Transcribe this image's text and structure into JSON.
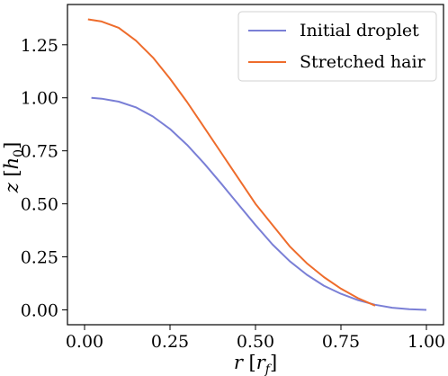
{
  "chart_data": {
    "type": "line",
    "xlim": [
      -0.05,
      1.05
    ],
    "ylim": [
      -0.07,
      1.44
    ],
    "x_ticks": [
      0.0,
      0.25,
      0.5,
      0.75,
      1.0
    ],
    "x_tick_labels": [
      "0.00",
      "0.25",
      "0.50",
      "0.75",
      "1.00"
    ],
    "y_ticks": [
      0.0,
      0.25,
      0.5,
      0.75,
      1.0,
      1.25
    ],
    "y_tick_labels": [
      "0.00",
      "0.25",
      "0.50",
      "0.75",
      "1.00",
      "1.25"
    ],
    "xlabel": {
      "var": "r",
      "open": " [",
      "sym": "r",
      "sub": "f",
      "close": "]"
    },
    "ylabel": {
      "var": "z",
      "open": " [",
      "sym": "h",
      "sub": "0",
      "close": "]"
    },
    "grid": false,
    "legend_position": "top-right",
    "series": [
      {
        "name": "Initial droplet",
        "color": "#7a7fd6",
        "x": [
          0.02,
          0.05,
          0.1,
          0.15,
          0.2,
          0.25,
          0.3,
          0.35,
          0.4,
          0.45,
          0.5,
          0.55,
          0.6,
          0.65,
          0.7,
          0.75,
          0.8,
          0.85,
          0.9,
          0.95,
          1.0
        ],
        "y": [
          1.0,
          0.996,
          0.982,
          0.955,
          0.912,
          0.853,
          0.778,
          0.69,
          0.595,
          0.497,
          0.4,
          0.308,
          0.23,
          0.166,
          0.114,
          0.076,
          0.046,
          0.024,
          0.01,
          0.003,
          0.0
        ]
      },
      {
        "name": "Stretched hair",
        "color": "#ee6c2c",
        "x": [
          0.01,
          0.05,
          0.1,
          0.15,
          0.2,
          0.25,
          0.3,
          0.35,
          0.4,
          0.45,
          0.5,
          0.55,
          0.6,
          0.65,
          0.7,
          0.75,
          0.8,
          0.85
        ],
        "y": [
          1.37,
          1.36,
          1.33,
          1.27,
          1.19,
          1.09,
          0.98,
          0.86,
          0.74,
          0.62,
          0.5,
          0.4,
          0.3,
          0.22,
          0.155,
          0.1,
          0.055,
          0.02
        ]
      }
    ]
  }
}
